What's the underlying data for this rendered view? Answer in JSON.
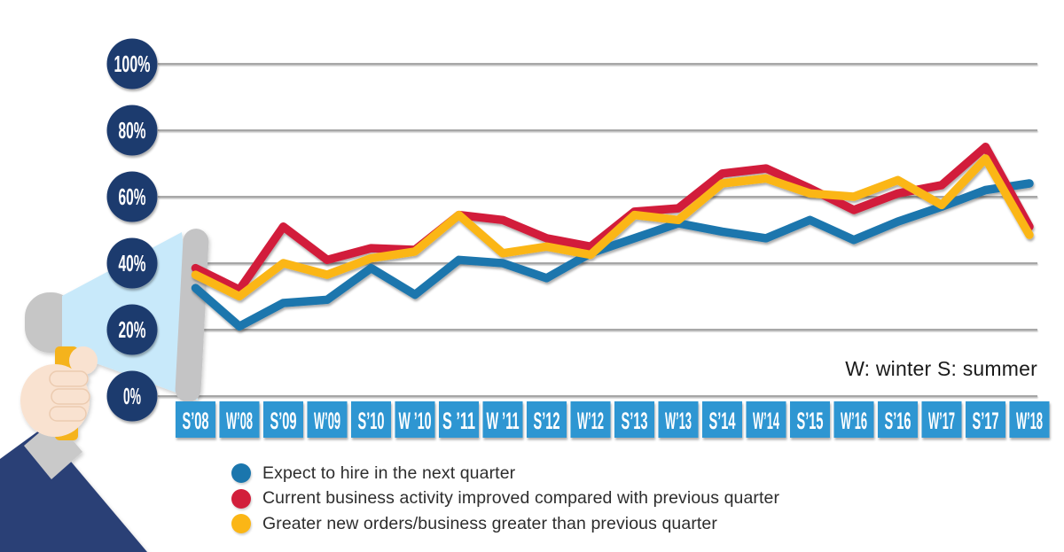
{
  "chart_data": {
    "type": "line",
    "title": "",
    "note": "W: winter S: summer",
    "unit": "%",
    "ylim": [
      0,
      100
    ],
    "grid": true,
    "legend_position": "bottom-left",
    "categories": [
      "S’08",
      "W’08",
      "S’09",
      "W’09",
      "S’10",
      "W ’10",
      "S ’11",
      "W ’11",
      "S’12",
      "W’12",
      "S’13",
      "W’13",
      "S’14",
      "W’14",
      "S’15",
      "W’16",
      "S’16",
      "W’17",
      "S’17",
      "W’18"
    ],
    "series": [
      {
        "name": "Expect to hire in the next quarter",
        "color": "#1b76ad",
        "values": [
          32.5,
          21,
          28,
          29,
          38.5,
          30.5,
          41,
          40,
          35.5,
          43,
          47.5,
          52,
          49.5,
          47.5,
          53,
          47,
          52.5,
          57,
          62,
          64
        ]
      },
      {
        "name": "Current business activity improved compared with previous quarter",
        "color": "#d21f3b",
        "values": [
          38.5,
          32,
          51,
          41,
          44.5,
          44,
          54.5,
          53,
          47.5,
          45,
          55.5,
          56.5,
          67,
          68.5,
          62.5,
          56,
          61,
          63.5,
          75,
          51
        ]
      },
      {
        "name": "Greater new orders/business greater than previous quarter",
        "color": "#fbb616",
        "values": [
          36.5,
          30,
          40,
          36.5,
          41.5,
          43.5,
          54.5,
          43,
          45,
          42.5,
          54.5,
          53,
          64,
          65.5,
          61,
          60,
          65,
          57.5,
          71.5,
          48.5
        ]
      }
    ]
  },
  "y_axis": {
    "labels": [
      "100%",
      "80%",
      "60%",
      "40%",
      "20%",
      "0%"
    ],
    "values": [
      100,
      80,
      60,
      40,
      20,
      0
    ],
    "circle_color": "#1e3a6e",
    "text_color": "#ffffff"
  },
  "x_axis": {
    "box_color": "#2e96d2",
    "text_color": "#ffffff"
  }
}
